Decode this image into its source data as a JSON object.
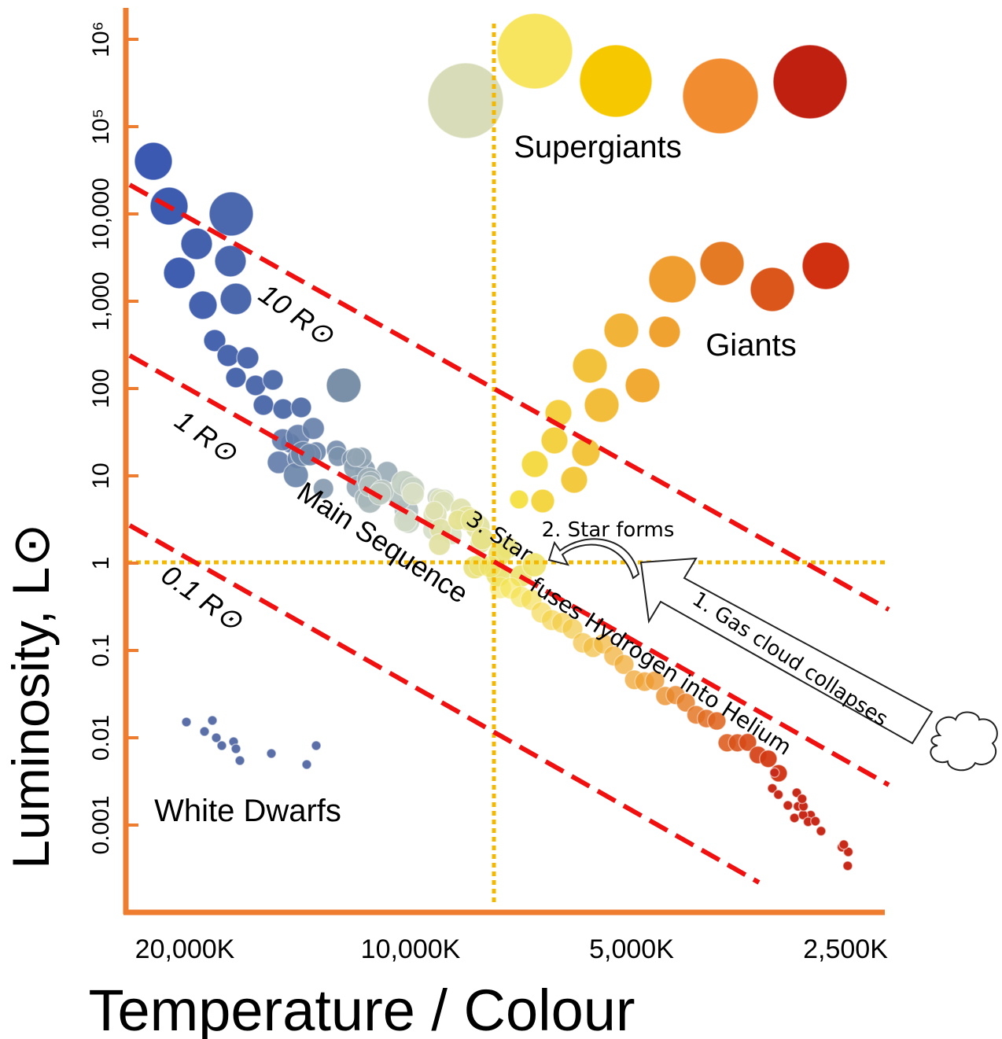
{
  "y_axis": {
    "title": "Luminosity, L⊙",
    "ticks": [
      "10⁶",
      "10⁵",
      "10,000",
      "1,000",
      "100",
      "10",
      "1",
      "0.1",
      "0.01",
      "0.001"
    ]
  },
  "x_axis": {
    "title": "Temperature / Colour",
    "ticks": [
      "20,000K",
      "10,000K",
      "5,000K",
      "2,500K"
    ]
  },
  "radius_lines": [
    "10 R⊙",
    "1 R⊙",
    "0.1 R⊙"
  ],
  "groups": {
    "supergiants": "Supergiants",
    "giants": "Giants",
    "main_sequence": "Main Sequence",
    "white_dwarfs": "White Dwarfs"
  },
  "stages": {
    "step1": "1. Gas cloud collapses",
    "step2": "2. Star forms",
    "step3a": "3. Star",
    "step3b": "fuses Hydrogen into Helium"
  }
}
